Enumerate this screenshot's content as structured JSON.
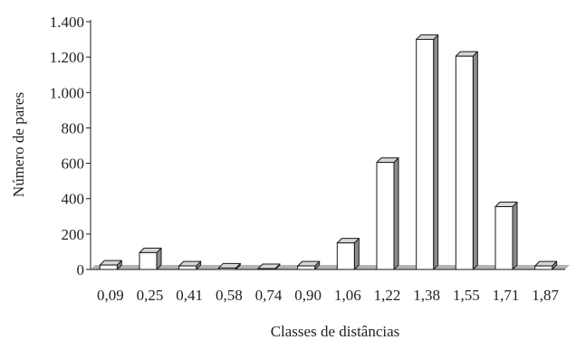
{
  "chart_data": {
    "type": "bar",
    "title": "",
    "xlabel": "Classes de distâncias",
    "ylabel": "Número de pares",
    "categories": [
      "0,09",
      "0,25",
      "0,41",
      "0,58",
      "0,74",
      "0,90",
      "1,06",
      "1,22",
      "1,38",
      "1,55",
      "1,71",
      "1,87"
    ],
    "values": [
      25,
      95,
      20,
      8,
      5,
      20,
      150,
      605,
      1300,
      1205,
      355,
      20
    ],
    "ylim": [
      0,
      1400
    ],
    "yticks": [
      0,
      200,
      400,
      600,
      800,
      1000,
      1200,
      1400
    ],
    "ytick_labels": [
      "0",
      "200",
      "400",
      "600",
      "800",
      "1.000",
      "1.200",
      "1.400"
    ],
    "grid": false,
    "legend": "none",
    "style": "3d",
    "colors": {
      "bar_face": "#ffffff",
      "bar_side": "#8c8c8c",
      "bar_top": "#d6d6d6",
      "floor": "#b3b3b3",
      "stroke": "#1a1a1a"
    }
  }
}
